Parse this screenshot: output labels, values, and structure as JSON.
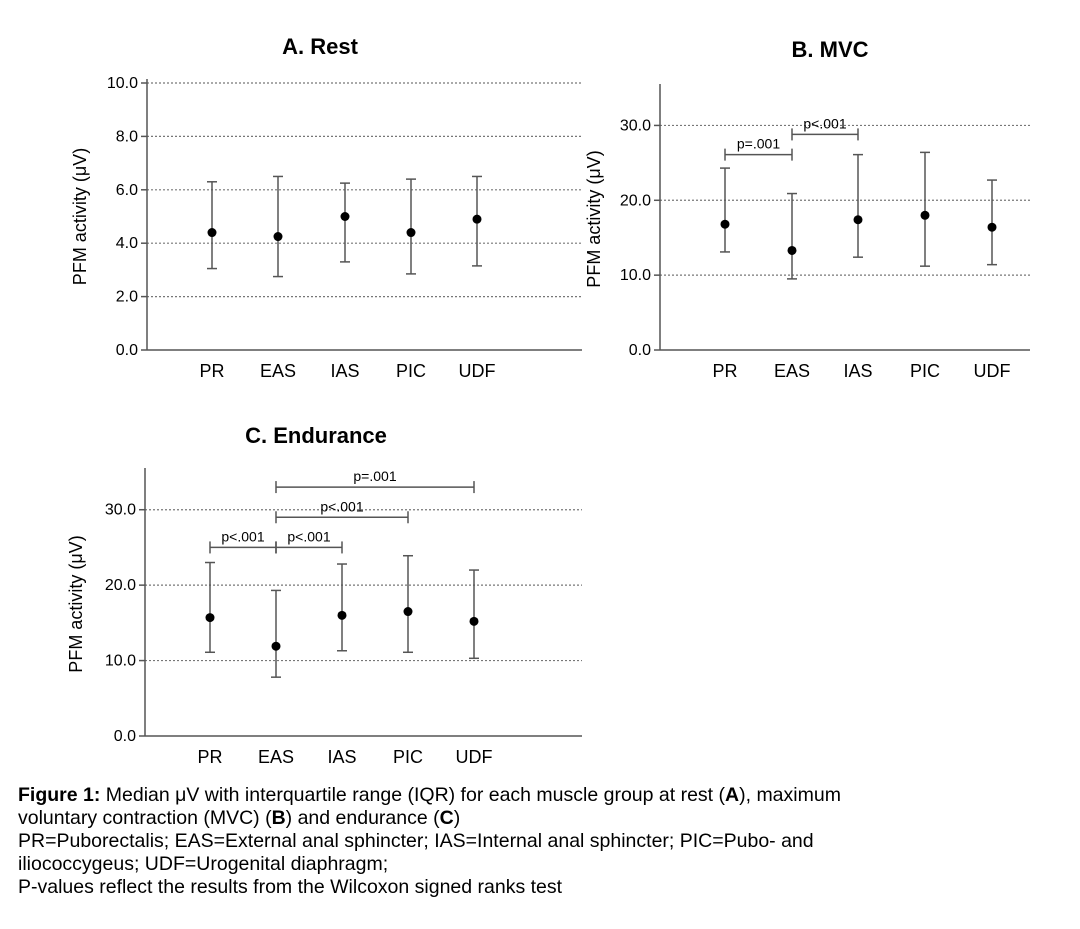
{
  "chart_data": [
    {
      "type": "scatter",
      "panel": "A",
      "title": "A. Rest",
      "ylabel": "PFM activity (μV)",
      "ylim": [
        0,
        10
      ],
      "yticks": [
        "0.0",
        "2.0",
        "4.0",
        "6.0",
        "8.0",
        "10.0"
      ],
      "ytick_values": [
        0,
        2,
        4,
        6,
        8,
        10
      ],
      "grid": true,
      "categories": [
        "PR",
        "EAS",
        "IAS",
        "PIC",
        "UDF"
      ],
      "series": [
        {
          "median": [
            4.4,
            4.25,
            5.0,
            4.4,
            4.9
          ],
          "q1": [
            3.05,
            2.75,
            3.3,
            2.85,
            3.15
          ],
          "q3": [
            6.3,
            6.5,
            6.25,
            6.4,
            6.5
          ]
        }
      ],
      "annotations": []
    },
    {
      "type": "scatter",
      "panel": "B",
      "title": "B. MVC",
      "ylabel": "PFM activity (μV)",
      "ylim": [
        0,
        35
      ],
      "yticks": [
        "0.0",
        "10.0",
        "20.0",
        "30.0"
      ],
      "ytick_values": [
        0,
        10,
        20,
        30
      ],
      "grid": true,
      "categories": [
        "PR",
        "EAS",
        "IAS",
        "PIC",
        "UDF"
      ],
      "series": [
        {
          "median": [
            16.8,
            13.3,
            17.4,
            18.0,
            16.4
          ],
          "q1": [
            13.1,
            9.5,
            12.4,
            11.2,
            11.4
          ],
          "q3": [
            24.3,
            20.9,
            26.1,
            26.4,
            22.7
          ]
        }
      ],
      "annotations": [
        {
          "text": "p=.001",
          "from": 0,
          "to": 1,
          "y": 26.1
        },
        {
          "text": "p<.001",
          "from": 1,
          "to": 2,
          "y": 28.8
        }
      ]
    },
    {
      "type": "scatter",
      "panel": "C",
      "title": "C. Endurance",
      "ylabel": "PFM activity (μV)",
      "ylim": [
        0,
        35
      ],
      "yticks": [
        "0.0",
        "10.0",
        "20.0",
        "30.0"
      ],
      "ytick_values": [
        0,
        10,
        20,
        30
      ],
      "grid": true,
      "categories": [
        "PR",
        "EAS",
        "IAS",
        "PIC",
        "UDF"
      ],
      "series": [
        {
          "median": [
            15.7,
            11.9,
            16.0,
            16.5,
            15.2
          ],
          "q1": [
            11.1,
            7.8,
            11.3,
            11.1,
            10.3
          ],
          "q3": [
            23.0,
            19.3,
            22.8,
            23.9,
            22.0
          ]
        }
      ],
      "annotations": [
        {
          "text": "p<.001",
          "from": 0,
          "to": 1,
          "y": 25.0
        },
        {
          "text": "p<.001",
          "from": 1,
          "to": 2,
          "y": 25.0
        },
        {
          "text": "p<.001",
          "from": 1,
          "to": 3,
          "y": 29.0
        },
        {
          "text": "p=.001",
          "from": 1,
          "to": 4,
          "y": 33.0
        }
      ]
    }
  ],
  "caption": {
    "line1_bold": "Figure 1:",
    "line1_a": " Median μV with interquartile range (IQR) for each muscle group at rest (",
    "line1_b": "A",
    "line1_c": "), maximum",
    "line2_a": "voluntary contraction (MVC) (",
    "line2_b": "B",
    "line2_c": ") and endurance (",
    "line2_d": "C",
    "line2_e": ")",
    "line3": "PR=Puborectalis; EAS=External anal sphincter; IAS=Internal anal sphincter; PIC=Pubo- and",
    "line4": "iliococcygeus; UDF=Urogenital diaphragm;",
    "line5": "P-values reflect the results from the Wilcoxon signed ranks test"
  },
  "colors": {
    "axis": "#555555",
    "grid": "#777777",
    "marker": "#000000",
    "errorbar": "#555555"
  }
}
